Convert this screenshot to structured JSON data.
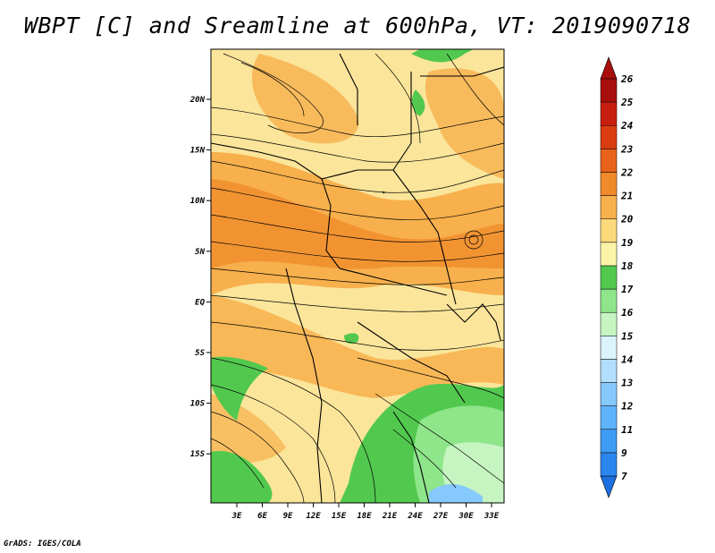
{
  "title": "WBPT [C] and Sreamline at 600hPa, VT: 2019090718",
  "footer": "GrADS: IGES/COLA",
  "map": {
    "lon_labels": [
      "3E",
      "6E",
      "9E",
      "12E",
      "15E",
      "18E",
      "21E",
      "24E",
      "27E",
      "30E",
      "33E"
    ],
    "lat_labels": [
      "20N",
      "15N",
      "10N",
      "5N",
      "EQ",
      "5S",
      "10S",
      "15S"
    ]
  },
  "colorbar": {
    "labels": [
      "7",
      "9",
      "11",
      "12",
      "13",
      "14",
      "15",
      "16",
      "17",
      "18",
      "19",
      "20",
      "21",
      "22",
      "23",
      "24",
      "25",
      "26"
    ],
    "colors": [
      "#1e6fe0",
      "#2b86ee",
      "#3d9cf6",
      "#5fb4fb",
      "#86c9fd",
      "#b3defd",
      "#dbf3fb",
      "#c7f5c2",
      "#8fe58a",
      "#52c94e",
      "#fbf3a8",
      "#fbd97a",
      "#f7b04c",
      "#f08a2a",
      "#e8621a",
      "#db3c12",
      "#c81e10",
      "#a80f0c"
    ]
  }
}
